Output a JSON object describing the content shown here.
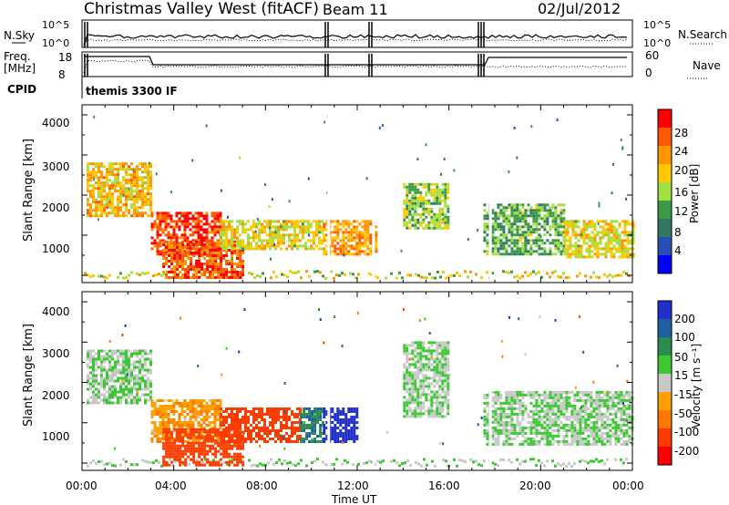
{
  "header": {
    "station": "Christmas Valley West (fitACF)",
    "beam": "Beam 11",
    "date": "02/Jul/2012"
  },
  "aux_panels": {
    "nsky_label": "N.Sky",
    "nsky_ticks": [
      "10^5",
      "10^0"
    ],
    "nsearch_label": "N.Search",
    "nsearch_ticks": [
      "10^5",
      "10^0"
    ],
    "freq_label_1": "Freq.",
    "freq_label_2": "[MHz]",
    "freq_ticks": [
      "18",
      "8"
    ],
    "nave_label": "Nave",
    "nave_ticks": [
      "60",
      "0"
    ],
    "cpid_label": "CPID",
    "cpid_value": "themis 3300 IF"
  },
  "axes": {
    "ylabel": "Slant Range [km]",
    "yticks": [
      "4000",
      "3000",
      "2000",
      "1000"
    ],
    "xlabel": "Time UT",
    "xticks": [
      "00:00",
      "04:00",
      "08:00",
      "12:00",
      "16:00",
      "20:00",
      "00:00"
    ]
  },
  "colorbars": {
    "power": {
      "label": "Power [dB]",
      "ticks": [
        "28",
        "24",
        "20",
        "16",
        "12",
        "8",
        "4"
      ],
      "colors": [
        "#ff0000",
        "#ff5a00",
        "#ff9600",
        "#ffc800",
        "#a0e040",
        "#3c9a46",
        "#327864",
        "#2850b4",
        "#0000ff"
      ]
    },
    "velocity": {
      "label": "Velocity [m s⁻¹]",
      "ticks": [
        "200",
        "100",
        "50",
        "15",
        "-15",
        "-50",
        "-100",
        "-200"
      ],
      "colors": [
        "#2030c8",
        "#2060a0",
        "#2c8c50",
        "#3cc832",
        "#c8c8c8",
        "#ffa000",
        "#ff7800",
        "#ff3c00",
        "#ff0000"
      ]
    }
  },
  "chart_data": [
    {
      "type": "heatmap",
      "title": "Power",
      "xlabel": "Time UT",
      "ylabel": "Slant Range [km]",
      "xlim": [
        "00:00",
        "24:00"
      ],
      "ylim": [
        180,
        4500
      ],
      "colorbar": "Power [dB]",
      "zlim": [
        0,
        30
      ],
      "regions": [
        {
          "t0": 0.2,
          "t1": 3.0,
          "r0": 1800,
          "r1": 3100,
          "value": 20
        },
        {
          "t0": 3.0,
          "t1": 6.0,
          "r0": 900,
          "r1": 1900,
          "value": 28
        },
        {
          "t0": 3.5,
          "t1": 7.0,
          "r0": 300,
          "r1": 1200,
          "value": 26
        },
        {
          "t0": 6.0,
          "t1": 10.5,
          "r0": 1000,
          "r1": 1700,
          "value": 18
        },
        {
          "t0": 10.5,
          "t1": 12.8,
          "r0": 900,
          "r1": 1700,
          "value": 22
        },
        {
          "t0": 14.0,
          "t1": 16.0,
          "r0": 1500,
          "r1": 2600,
          "value": 14
        },
        {
          "t0": 17.5,
          "t1": 21.0,
          "r0": 900,
          "r1": 2100,
          "value": 12
        },
        {
          "t0": 21.0,
          "t1": 24.0,
          "r0": 800,
          "r1": 1700,
          "value": 18
        }
      ]
    },
    {
      "type": "heatmap",
      "title": "Velocity",
      "xlabel": "Time UT",
      "ylabel": "Slant Range [km]",
      "xlim": [
        "00:00",
        "24:00"
      ],
      "ylim": [
        180,
        4500
      ],
      "colorbar": "Velocity [m s-1]",
      "zlim": [
        -250,
        250
      ],
      "regions": [
        {
          "t0": 0.2,
          "t1": 3.0,
          "r0": 1800,
          "r1": 3100,
          "value": 0
        },
        {
          "t0": 3.0,
          "t1": 6.0,
          "r0": 900,
          "r1": 1900,
          "value": -60
        },
        {
          "t0": 3.5,
          "t1": 7.0,
          "r0": 300,
          "r1": 1200,
          "value": -200
        },
        {
          "t0": 6.0,
          "t1": 9.5,
          "r0": 900,
          "r1": 1700,
          "value": -200
        },
        {
          "t0": 9.5,
          "t1": 10.5,
          "r0": 900,
          "r1": 1700,
          "value": 60
        },
        {
          "t0": 10.5,
          "t1": 12.0,
          "r0": 900,
          "r1": 1700,
          "value": 200
        },
        {
          "t0": 14.0,
          "t1": 16.0,
          "r0": 1500,
          "r1": 3300,
          "value": 0
        },
        {
          "t0": 17.5,
          "t1": 24.0,
          "r0": 800,
          "r1": 2100,
          "value": 0
        }
      ]
    }
  ]
}
